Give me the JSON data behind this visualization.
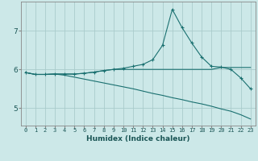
{
  "xlabel": "Humidex (Indice chaleur)",
  "ylabel": "",
  "bg_color": "#cce8e8",
  "grid_color": "#aacccc",
  "line_color": "#1a7070",
  "xlim": [
    -0.5,
    23.5
  ],
  "ylim": [
    4.55,
    7.75
  ],
  "yticks": [
    5,
    6,
    7
  ],
  "xticks": [
    0,
    1,
    2,
    3,
    4,
    5,
    6,
    7,
    8,
    9,
    10,
    11,
    12,
    13,
    14,
    15,
    16,
    17,
    18,
    19,
    20,
    21,
    22,
    23
  ],
  "line1_x": [
    0,
    1,
    2,
    3,
    4,
    5,
    6,
    7,
    8,
    9,
    10,
    11,
    12,
    13,
    14,
    15,
    16,
    17,
    18,
    19,
    20,
    21,
    22,
    23
  ],
  "line1_y": [
    5.92,
    5.87,
    5.87,
    5.88,
    5.88,
    5.88,
    5.9,
    5.93,
    5.97,
    6.0,
    6.03,
    6.08,
    6.13,
    6.25,
    6.62,
    7.55,
    7.08,
    6.68,
    6.32,
    6.08,
    6.06,
    6.0,
    5.78,
    5.5
  ],
  "line2_x": [
    0,
    1,
    2,
    3,
    4,
    5,
    6,
    7,
    8,
    9,
    10,
    11,
    12,
    13,
    14,
    15,
    16,
    17,
    18,
    19,
    20,
    21,
    22,
    23
  ],
  "line2_y": [
    5.92,
    5.87,
    5.87,
    5.88,
    5.88,
    5.88,
    5.9,
    5.93,
    5.97,
    6.0,
    6.0,
    6.0,
    6.0,
    6.0,
    6.0,
    6.0,
    6.0,
    6.0,
    6.0,
    6.0,
    6.05,
    6.05,
    6.05,
    6.05
  ],
  "line3_x": [
    0,
    1,
    2,
    3,
    4,
    5,
    6,
    7,
    8,
    9,
    10,
    11,
    12,
    13,
    14,
    15,
    16,
    17,
    18,
    19,
    20,
    21,
    22,
    23
  ],
  "line3_y": [
    5.92,
    5.87,
    5.87,
    5.88,
    5.85,
    5.8,
    5.75,
    5.7,
    5.65,
    5.6,
    5.55,
    5.5,
    5.44,
    5.38,
    5.33,
    5.27,
    5.22,
    5.16,
    5.11,
    5.05,
    4.98,
    4.92,
    4.83,
    4.72
  ]
}
